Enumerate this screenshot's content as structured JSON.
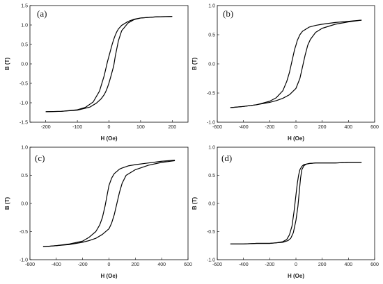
{
  "colors": {
    "line": "#000000",
    "frame": "#000000",
    "background": "#ffffff"
  },
  "chart_data": [
    {
      "type": "line",
      "panel_label": "(a)",
      "xlabel": "H (Oe)",
      "ylabel": "B (T)",
      "xlim": [
        -250,
        250
      ],
      "ylim": [
        -1.5,
        1.5
      ],
      "xticks": [
        -200,
        -100,
        0,
        100,
        200
      ],
      "yticks": [
        -1.5,
        -1.0,
        -0.5,
        0.0,
        0.5,
        1.0,
        1.5
      ],
      "ytick_labels": [
        "-1.5",
        "-1.0",
        "-0.5",
        "0.0",
        "0.5",
        "1.0",
        "1.5"
      ],
      "grid": false,
      "series": [
        {
          "x": [
            -200,
            -150,
            -100,
            -75,
            -50,
            -30,
            -15,
            -5,
            0,
            5,
            10,
            15,
            20,
            25,
            30,
            40,
            60,
            80,
            100,
            150,
            200
          ],
          "y": [
            -1.23,
            -1.22,
            -1.18,
            -1.12,
            -0.98,
            -0.7,
            -0.3,
            0.05,
            0.2,
            0.35,
            0.5,
            0.63,
            0.74,
            0.83,
            0.9,
            0.99,
            1.09,
            1.15,
            1.18,
            1.21,
            1.22
          ]
        },
        {
          "x": [
            -200,
            -150,
            -100,
            -60,
            -40,
            -25,
            -15,
            -10,
            -5,
            0,
            5,
            10,
            15,
            20,
            30,
            40,
            60,
            80,
            100,
            150,
            200
          ],
          "y": [
            -1.23,
            -1.22,
            -1.19,
            -1.11,
            -1.01,
            -0.9,
            -0.79,
            -0.71,
            -0.61,
            -0.49,
            -0.35,
            -0.2,
            -0.05,
            0.2,
            0.6,
            0.85,
            1.05,
            1.14,
            1.18,
            1.21,
            1.22
          ]
        }
      ]
    },
    {
      "type": "line",
      "panel_label": "(b)",
      "xlabel": "H (Oe)",
      "ylabel": "B (T)",
      "xlim": [
        -600,
        600
      ],
      "ylim": [
        -1.0,
        1.0
      ],
      "xticks": [
        -600,
        -400,
        -200,
        0,
        200,
        400,
        600
      ],
      "yticks": [
        -1.0,
        -0.5,
        0.0,
        0.5,
        1.0
      ],
      "ytick_labels": [
        "-1.0",
        "-0.5",
        "0.0",
        "0.5",
        "1.0"
      ],
      "grid": false,
      "series": [
        {
          "x": [
            -500,
            -400,
            -300,
            -200,
            -150,
            -100,
            -70,
            -50,
            -30,
            -10,
            0,
            10,
            30,
            50,
            100,
            150,
            200,
            300,
            400,
            500
          ],
          "y": [
            -0.75,
            -0.73,
            -0.7,
            -0.64,
            -0.58,
            -0.46,
            -0.3,
            -0.15,
            0.05,
            0.25,
            0.32,
            0.4,
            0.5,
            0.56,
            0.63,
            0.66,
            0.68,
            0.71,
            0.73,
            0.75
          ]
        },
        {
          "x": [
            -500,
            -400,
            -300,
            -200,
            -150,
            -100,
            -50,
            0,
            30,
            50,
            70,
            90,
            110,
            150,
            200,
            300,
            400,
            500
          ],
          "y": [
            -0.75,
            -0.73,
            -0.7,
            -0.66,
            -0.63,
            -0.59,
            -0.53,
            -0.42,
            -0.25,
            -0.05,
            0.15,
            0.32,
            0.42,
            0.54,
            0.61,
            0.68,
            0.72,
            0.75
          ]
        }
      ]
    },
    {
      "type": "line",
      "panel_label": "(c)",
      "xlabel": "H (Oe)",
      "ylabel": "B (T)",
      "xlim": [
        -600,
        600
      ],
      "ylim": [
        -1.0,
        1.0
      ],
      "xticks": [
        -600,
        -400,
        -200,
        0,
        200,
        400,
        600
      ],
      "yticks": [
        -1.0,
        -0.5,
        0.0,
        0.5,
        1.0
      ],
      "ytick_labels": [
        "-1.0",
        "-0.5",
        "0.0",
        "0.5",
        "1.0"
      ],
      "grid": false,
      "series": [
        {
          "x": [
            -500,
            -400,
            -300,
            -200,
            -150,
            -100,
            -70,
            -50,
            -30,
            -10,
            0,
            20,
            40,
            80,
            100,
            150,
            200,
            300,
            400,
            500
          ],
          "y": [
            -0.77,
            -0.75,
            -0.72,
            -0.67,
            -0.6,
            -0.5,
            -0.38,
            -0.25,
            -0.05,
            0.2,
            0.32,
            0.45,
            0.53,
            0.61,
            0.63,
            0.67,
            0.69,
            0.72,
            0.75,
            0.77
          ]
        },
        {
          "x": [
            -500,
            -400,
            -300,
            -200,
            -150,
            -100,
            -50,
            0,
            20,
            40,
            60,
            80,
            100,
            130,
            200,
            300,
            400,
            500
          ],
          "y": [
            -0.77,
            -0.75,
            -0.73,
            -0.69,
            -0.66,
            -0.62,
            -0.55,
            -0.45,
            -0.35,
            -0.2,
            0.0,
            0.2,
            0.36,
            0.5,
            0.6,
            0.68,
            0.73,
            0.76
          ]
        }
      ]
    },
    {
      "type": "line",
      "panel_label": "(d)",
      "xlabel": "H (Oe)",
      "ylabel": "B (T)",
      "xlim": [
        -600,
        600
      ],
      "ylim": [
        -1.0,
        1.0
      ],
      "xticks": [
        -600,
        -400,
        -200,
        0,
        200,
        400,
        600
      ],
      "yticks": [
        -1.0,
        -0.5,
        0.0,
        0.5,
        1.0
      ],
      "ytick_labels": [
        "-1.0",
        "-0.5",
        "0.0",
        "0.5",
        "1.0"
      ],
      "grid": false,
      "series": [
        {
          "x": [
            -500,
            -400,
            -300,
            -200,
            -150,
            -100,
            -70,
            -50,
            -30,
            -15,
            0,
            10,
            20,
            30,
            45,
            60,
            80,
            100,
            150,
            200,
            300,
            400,
            500
          ],
          "y": [
            -0.72,
            -0.72,
            -0.71,
            -0.71,
            -0.7,
            -0.68,
            -0.64,
            -0.56,
            -0.4,
            -0.15,
            0.15,
            0.35,
            0.5,
            0.6,
            0.66,
            0.69,
            0.7,
            0.71,
            0.72,
            0.72,
            0.72,
            0.73,
            0.73
          ]
        },
        {
          "x": [
            -500,
            -400,
            -300,
            -200,
            -150,
            -100,
            -60,
            -40,
            -20,
            0,
            15,
            25,
            35,
            45,
            60,
            80,
            100,
            150,
            200,
            300,
            400,
            500
          ],
          "y": [
            -0.72,
            -0.72,
            -0.71,
            -0.71,
            -0.7,
            -0.69,
            -0.66,
            -0.62,
            -0.52,
            -0.3,
            -0.05,
            0.2,
            0.45,
            0.6,
            0.67,
            0.7,
            0.71,
            0.72,
            0.72,
            0.72,
            0.73,
            0.73
          ]
        }
      ]
    }
  ]
}
